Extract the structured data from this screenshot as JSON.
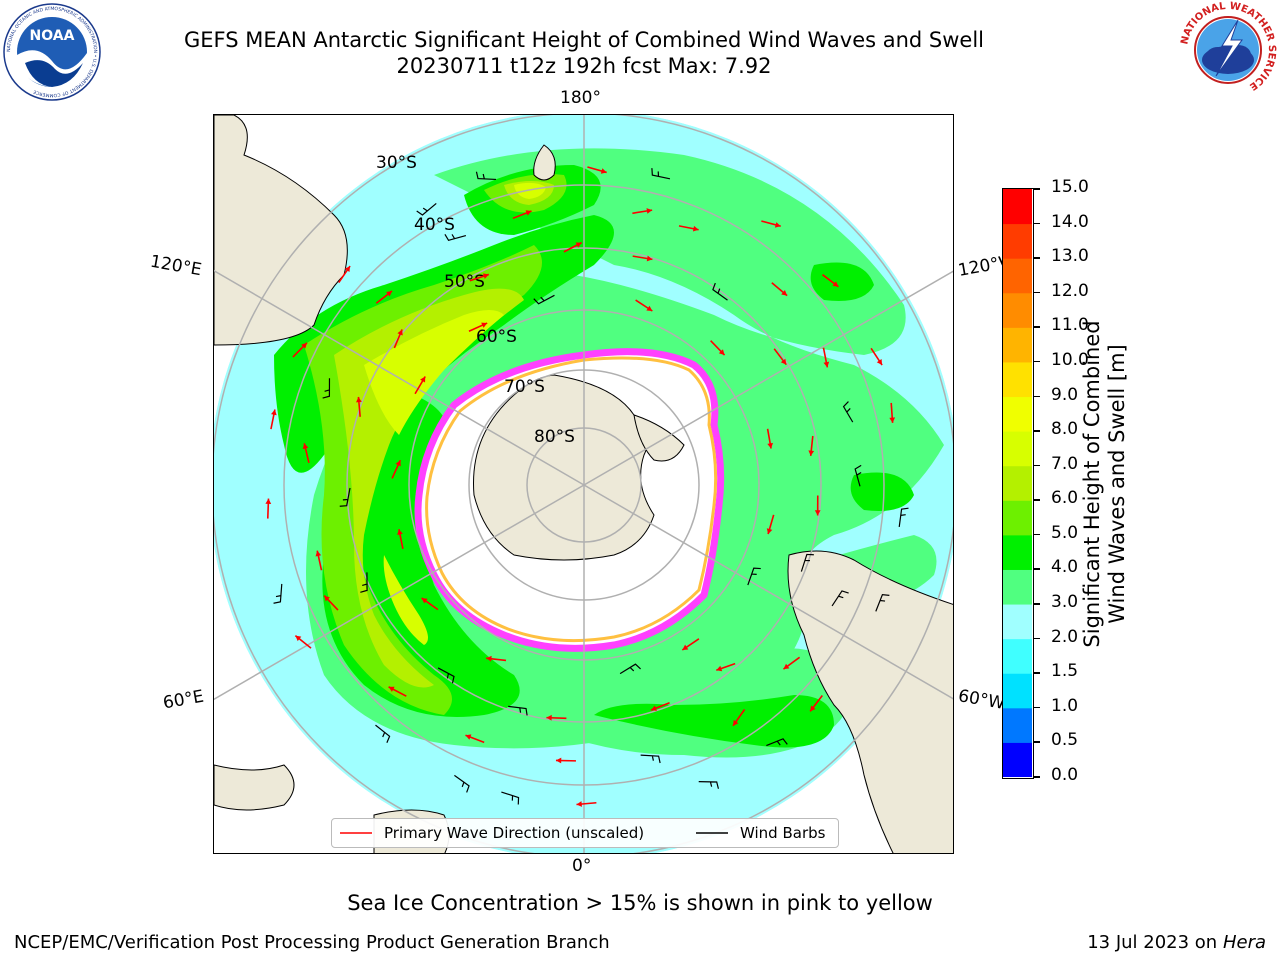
{
  "header": {
    "title_line1": "GEFS MEAN Antarctic Significant Height of Combined Wind Waves and Swell",
    "title_line2": "20230711 t12z 192h fcst   Max: 7.92",
    "noaa_logo_text": "NOAA",
    "noaa_ring_text": "NATIONAL OCEANIC AND ATMOSPHERIC ADMINISTRATION • U.S. DEPARTMENT OF COMMERCE",
    "nws_ring_text": "NATIONAL WEATHER SERVICE"
  },
  "map": {
    "projection": "south-polar-stereographic",
    "longitude_labels": {
      "top": "180°",
      "bottom": "0°",
      "left_upper": "120°E",
      "left_lower": "60°E",
      "right_upper": "120°W",
      "right_lower": "60°W"
    },
    "latitude_labels": [
      "30°S",
      "40°S",
      "50°S",
      "60°S",
      "70°S",
      "80°S"
    ],
    "legend": {
      "primary_wave": "Primary Wave Direction (unscaled)",
      "wind_barbs": "Wind Barbs"
    },
    "colors": {
      "land": "#ede9d8",
      "ice_edge": "#ff40ff",
      "wave_arrow": "#ff0000",
      "wind_barb": "#000000"
    }
  },
  "colorbar": {
    "title_line1": "Significant Height of Combined",
    "title_line2": "Wind Waves and Swell [m]",
    "ticks": [
      "0.0",
      "0.5",
      "1.0",
      "1.5",
      "2.0",
      "3.0",
      "4.0",
      "5.0",
      "6.0",
      "7.0",
      "8.0",
      "9.0",
      "10.0",
      "11.0",
      "12.0",
      "13.0",
      "14.0",
      "15.0"
    ],
    "bins": [
      {
        "from": "0.0",
        "to": "0.5",
        "color": "#0000ff"
      },
      {
        "from": "0.5",
        "to": "1.0",
        "color": "#0078ff"
      },
      {
        "from": "1.0",
        "to": "1.5",
        "color": "#00e1ff"
      },
      {
        "from": "1.5",
        "to": "2.0",
        "color": "#40ffff"
      },
      {
        "from": "2.0",
        "to": "3.0",
        "color": "#a0ffff"
      },
      {
        "from": "3.0",
        "to": "4.0",
        "color": "#50ff80"
      },
      {
        "from": "4.0",
        "to": "5.0",
        "color": "#00f000"
      },
      {
        "from": "5.0",
        "to": "6.0",
        "color": "#6df000"
      },
      {
        "from": "6.0",
        "to": "7.0",
        "color": "#b4f000"
      },
      {
        "from": "7.0",
        "to": "8.0",
        "color": "#d7ff00"
      },
      {
        "from": "8.0",
        "to": "9.0",
        "color": "#f0ff00"
      },
      {
        "from": "9.0",
        "to": "10.0",
        "color": "#ffe100"
      },
      {
        "from": "10.0",
        "to": "11.0",
        "color": "#ffb400"
      },
      {
        "from": "11.0",
        "to": "12.0",
        "color": "#ff8c00"
      },
      {
        "from": "12.0",
        "to": "13.0",
        "color": "#ff6400"
      },
      {
        "from": "13.0",
        "to": "14.0",
        "color": "#ff3c00"
      },
      {
        "from": "14.0",
        "to": "15.0",
        "color": "#ff0000"
      }
    ]
  },
  "notes": {
    "sea_ice": "Sea Ice Concentration > 15% is shown in pink to yellow"
  },
  "footer": {
    "left": "NCEP/EMC/Verification Post Processing Product Generation Branch",
    "right_prefix": "13 Jul 2023 on ",
    "right_machine": "Hera"
  }
}
